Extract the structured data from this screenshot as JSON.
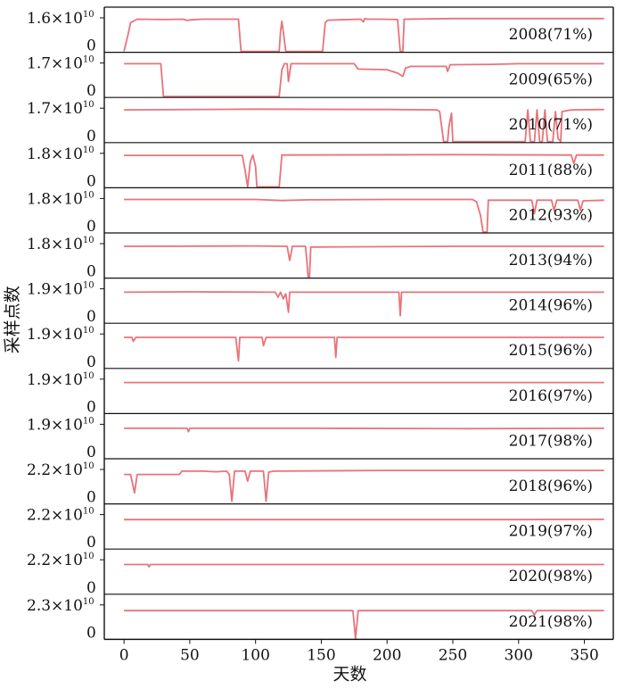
{
  "colors": {
    "series": "#e8737a",
    "axis": "#111111",
    "background": "#ffffff"
  },
  "chart_data": {
    "type": "line",
    "xlabel": "天数",
    "ylabel": "采样点数",
    "xlim": [
      -15,
      372
    ],
    "xticks": [
      0,
      50,
      100,
      150,
      200,
      250,
      300,
      350
    ],
    "panels": [
      {
        "label": "2008(71%)",
        "ymax_label": "1.6×10",
        "ymax_exp": "10",
        "ymin_label": "0",
        "ymax": 16000000000,
        "points": [
          [
            0,
            0
          ],
          [
            3,
            0.5
          ],
          [
            5,
            0.86
          ],
          [
            10,
            0.96
          ],
          [
            30,
            0.95
          ],
          [
            45,
            0.96
          ],
          [
            48,
            0.92
          ],
          [
            50,
            0.94
          ],
          [
            60,
            0.96
          ],
          [
            87,
            0.96
          ],
          [
            89,
            0
          ],
          [
            118,
            0
          ],
          [
            119,
            0.6
          ],
          [
            120,
            0.9
          ],
          [
            121,
            0.6
          ],
          [
            123,
            0
          ],
          [
            151,
            0
          ],
          [
            153,
            0.86
          ],
          [
            155,
            0.93
          ],
          [
            180,
            0.96
          ],
          [
            182,
            0.88
          ],
          [
            183,
            0.98
          ],
          [
            185,
            0.96
          ],
          [
            195,
            0.96
          ],
          [
            208,
            0.95
          ],
          [
            210,
            0
          ],
          [
            212,
            0
          ],
          [
            213,
            0.96
          ],
          [
            250,
            0.98
          ],
          [
            365,
            0.98
          ]
        ]
      },
      {
        "label": "2009(65%)",
        "ymax_label": "1.7×10",
        "ymax_exp": "10",
        "ymin_label": "0",
        "ymax": 17000000000,
        "points": [
          [
            0,
            0.98
          ],
          [
            28,
            0.98
          ],
          [
            30,
            0
          ],
          [
            118,
            0
          ],
          [
            120,
            0.8
          ],
          [
            122,
            0.98
          ],
          [
            124,
            0.98
          ],
          [
            125,
            0.45
          ],
          [
            127,
            0.98
          ],
          [
            175,
            0.98
          ],
          [
            178,
            0.82
          ],
          [
            200,
            0.8
          ],
          [
            208,
            0.7
          ],
          [
            212,
            0.6
          ],
          [
            214,
            0.85
          ],
          [
            218,
            0.9
          ],
          [
            245,
            0.9
          ],
          [
            246,
            0.75
          ],
          [
            248,
            0.95
          ],
          [
            280,
            0.96
          ],
          [
            300,
            0.98
          ],
          [
            365,
            0.98
          ]
        ]
      },
      {
        "label": "2010(71%)",
        "ymax_label": "1.7×10",
        "ymax_exp": "10",
        "ymin_label": "0",
        "ymax": 17000000000,
        "points": [
          [
            0,
            0.95
          ],
          [
            100,
            0.97
          ],
          [
            200,
            0.96
          ],
          [
            238,
            0.95
          ],
          [
            240,
            0.9
          ],
          [
            243,
            0
          ],
          [
            246,
            0
          ],
          [
            247,
            0.45
          ],
          [
            249,
            0.85
          ],
          [
            250,
            0
          ],
          [
            300,
            0
          ],
          [
            305,
            0
          ],
          [
            307,
            0.95
          ],
          [
            309,
            0
          ],
          [
            312,
            0
          ],
          [
            314,
            0.95
          ],
          [
            316,
            0
          ],
          [
            318,
            0
          ],
          [
            320,
            0.95
          ],
          [
            322,
            0
          ],
          [
            326,
            0
          ],
          [
            328,
            0.9
          ],
          [
            330,
            0.1
          ],
          [
            332,
            0
          ],
          [
            333,
            0.9
          ],
          [
            340,
            0.95
          ],
          [
            365,
            0.96
          ]
        ]
      },
      {
        "label": "2011(88%)",
        "ymax_label": "1.8×10",
        "ymax_exp": "10",
        "ymin_label": "0",
        "ymax": 18000000000,
        "points": [
          [
            0,
            0.94
          ],
          [
            90,
            0.94
          ],
          [
            92,
            0.5
          ],
          [
            94,
            0
          ],
          [
            96,
            0.75
          ],
          [
            98,
            0.95
          ],
          [
            100,
            0.6
          ],
          [
            101,
            0
          ],
          [
            118,
            0
          ],
          [
            120,
            0.95
          ],
          [
            250,
            0.96
          ],
          [
            340,
            0.95
          ],
          [
            342,
            0.7
          ],
          [
            344,
            0.95
          ],
          [
            365,
            0.95
          ]
        ]
      },
      {
        "label": "2012(93%)",
        "ymax_label": "1.8×10",
        "ymax_exp": "10",
        "ymin_label": "0",
        "ymax": 18000000000,
        "points": [
          [
            0,
            0.97
          ],
          [
            100,
            0.97
          ],
          [
            120,
            0.94
          ],
          [
            140,
            0.96
          ],
          [
            200,
            0.97
          ],
          [
            265,
            0.97
          ],
          [
            268,
            0.9
          ],
          [
            271,
            0.5
          ],
          [
            273,
            0
          ],
          [
            276,
            0
          ],
          [
            277,
            0.95
          ],
          [
            310,
            0.95
          ],
          [
            312,
            0.55
          ],
          [
            314,
            0.95
          ],
          [
            325,
            0.95
          ],
          [
            327,
            0.65
          ],
          [
            329,
            0.95
          ],
          [
            345,
            0.95
          ],
          [
            347,
            0.65
          ],
          [
            349,
            0.93
          ],
          [
            365,
            0.95
          ]
        ]
      },
      {
        "label": "2013(94%)",
        "ymax_label": "1.8×10",
        "ymax_exp": "10",
        "ymin_label": "0",
        "ymax": 18000000000,
        "points": [
          [
            0,
            0.92
          ],
          [
            100,
            0.93
          ],
          [
            124,
            0.92
          ],
          [
            126,
            0.5
          ],
          [
            128,
            0.92
          ],
          [
            138,
            0.92
          ],
          [
            139,
            0.5
          ],
          [
            140,
            0
          ],
          [
            141,
            0
          ],
          [
            142,
            0.9
          ],
          [
            250,
            0.92
          ],
          [
            365,
            0.92
          ]
        ]
      },
      {
        "label": "2014(96%)",
        "ymax_label": "1.9×10",
        "ymax_exp": "10",
        "ymin_label": "0",
        "ymax": 19000000000,
        "points": [
          [
            0,
            0.9
          ],
          [
            50,
            0.91
          ],
          [
            115,
            0.9
          ],
          [
            117,
            0.75
          ],
          [
            119,
            0.9
          ],
          [
            121,
            0.7
          ],
          [
            123,
            0.85
          ],
          [
            125,
            0.3
          ],
          [
            126,
            0.9
          ],
          [
            200,
            0.9
          ],
          [
            209,
            0.9
          ],
          [
            210,
            0.2
          ],
          [
            211,
            0.9
          ],
          [
            300,
            0.9
          ],
          [
            365,
            0.9
          ]
        ]
      },
      {
        "label": "2015(96%)",
        "ymax_label": "1.9×10",
        "ymax_exp": "10",
        "ymin_label": "0",
        "ymax": 19000000000,
        "points": [
          [
            0,
            0.9
          ],
          [
            6,
            0.9
          ],
          [
            7,
            0.78
          ],
          [
            9,
            0.9
          ],
          [
            85,
            0.9
          ],
          [
            87,
            0.2
          ],
          [
            88,
            0.9
          ],
          [
            105,
            0.9
          ],
          [
            106,
            0.65
          ],
          [
            108,
            0.9
          ],
          [
            160,
            0.9
          ],
          [
            161,
            0.3
          ],
          [
            162,
            0.9
          ],
          [
            250,
            0.9
          ],
          [
            365,
            0.9
          ]
        ]
      },
      {
        "label": "2016(97%)",
        "ymax_label": "1.9×10",
        "ymax_exp": "10",
        "ymin_label": "0",
        "ymax": 19000000000,
        "points": [
          [
            0,
            0.9
          ],
          [
            100,
            0.9
          ],
          [
            200,
            0.9
          ],
          [
            300,
            0.9
          ],
          [
            365,
            0.9
          ]
        ]
      },
      {
        "label": "2017(98%)",
        "ymax_label": "1.9×10",
        "ymax_exp": "10",
        "ymin_label": "0",
        "ymax": 19000000000,
        "points": [
          [
            0,
            0.88
          ],
          [
            48,
            0.88
          ],
          [
            49,
            0.78
          ],
          [
            50,
            0.88
          ],
          [
            150,
            0.88
          ],
          [
            260,
            0.87
          ],
          [
            365,
            0.88
          ]
        ]
      },
      {
        "label": "2018(96%)",
        "ymax_label": "2.2×10",
        "ymax_exp": "10",
        "ymin_label": "0",
        "ymax": 22000000000,
        "points": [
          [
            0,
            0.85
          ],
          [
            5,
            0.85
          ],
          [
            8,
            0.3
          ],
          [
            10,
            0.85
          ],
          [
            42,
            0.85
          ],
          [
            44,
            0.95
          ],
          [
            55,
            0.95
          ],
          [
            60,
            0.95
          ],
          [
            70,
            0.93
          ],
          [
            78,
            0.95
          ],
          [
            80,
            0.85
          ],
          [
            82,
            0.05
          ],
          [
            84,
            0.95
          ],
          [
            92,
            0.95
          ],
          [
            94,
            0.65
          ],
          [
            96,
            0.95
          ],
          [
            106,
            0.95
          ],
          [
            108,
            0.05
          ],
          [
            110,
            0.92
          ],
          [
            114,
            0.95
          ],
          [
            200,
            0.97
          ],
          [
            300,
            0.97
          ],
          [
            365,
            0.97
          ]
        ]
      },
      {
        "label": "2019(97%)",
        "ymax_label": "2.2×10",
        "ymax_exp": "10",
        "ymin_label": "0",
        "ymax": 22000000000,
        "points": [
          [
            0,
            0.85
          ],
          [
            100,
            0.85
          ],
          [
            200,
            0.85
          ],
          [
            300,
            0.85
          ],
          [
            365,
            0.86
          ]
        ]
      },
      {
        "label": "2020(98%)",
        "ymax_label": "2.2×10",
        "ymax_exp": "10",
        "ymin_label": "0",
        "ymax": 22000000000,
        "points": [
          [
            0,
            0.86
          ],
          [
            18,
            0.86
          ],
          [
            19,
            0.79
          ],
          [
            20,
            0.86
          ],
          [
            200,
            0.86
          ],
          [
            320,
            0.86
          ],
          [
            365,
            0.86
          ]
        ]
      },
      {
        "label": "2021(98%)",
        "ymax_label": "2.3×10",
        "ymax_exp": "10",
        "ymin_label": "0",
        "ymax": 23000000000,
        "points": [
          [
            0,
            0.83
          ],
          [
            174,
            0.83
          ],
          [
            176,
            0
          ],
          [
            178,
            0.83
          ],
          [
            310,
            0.83
          ],
          [
            312,
            0.7
          ],
          [
            314,
            0.83
          ],
          [
            365,
            0.83
          ]
        ]
      }
    ]
  }
}
